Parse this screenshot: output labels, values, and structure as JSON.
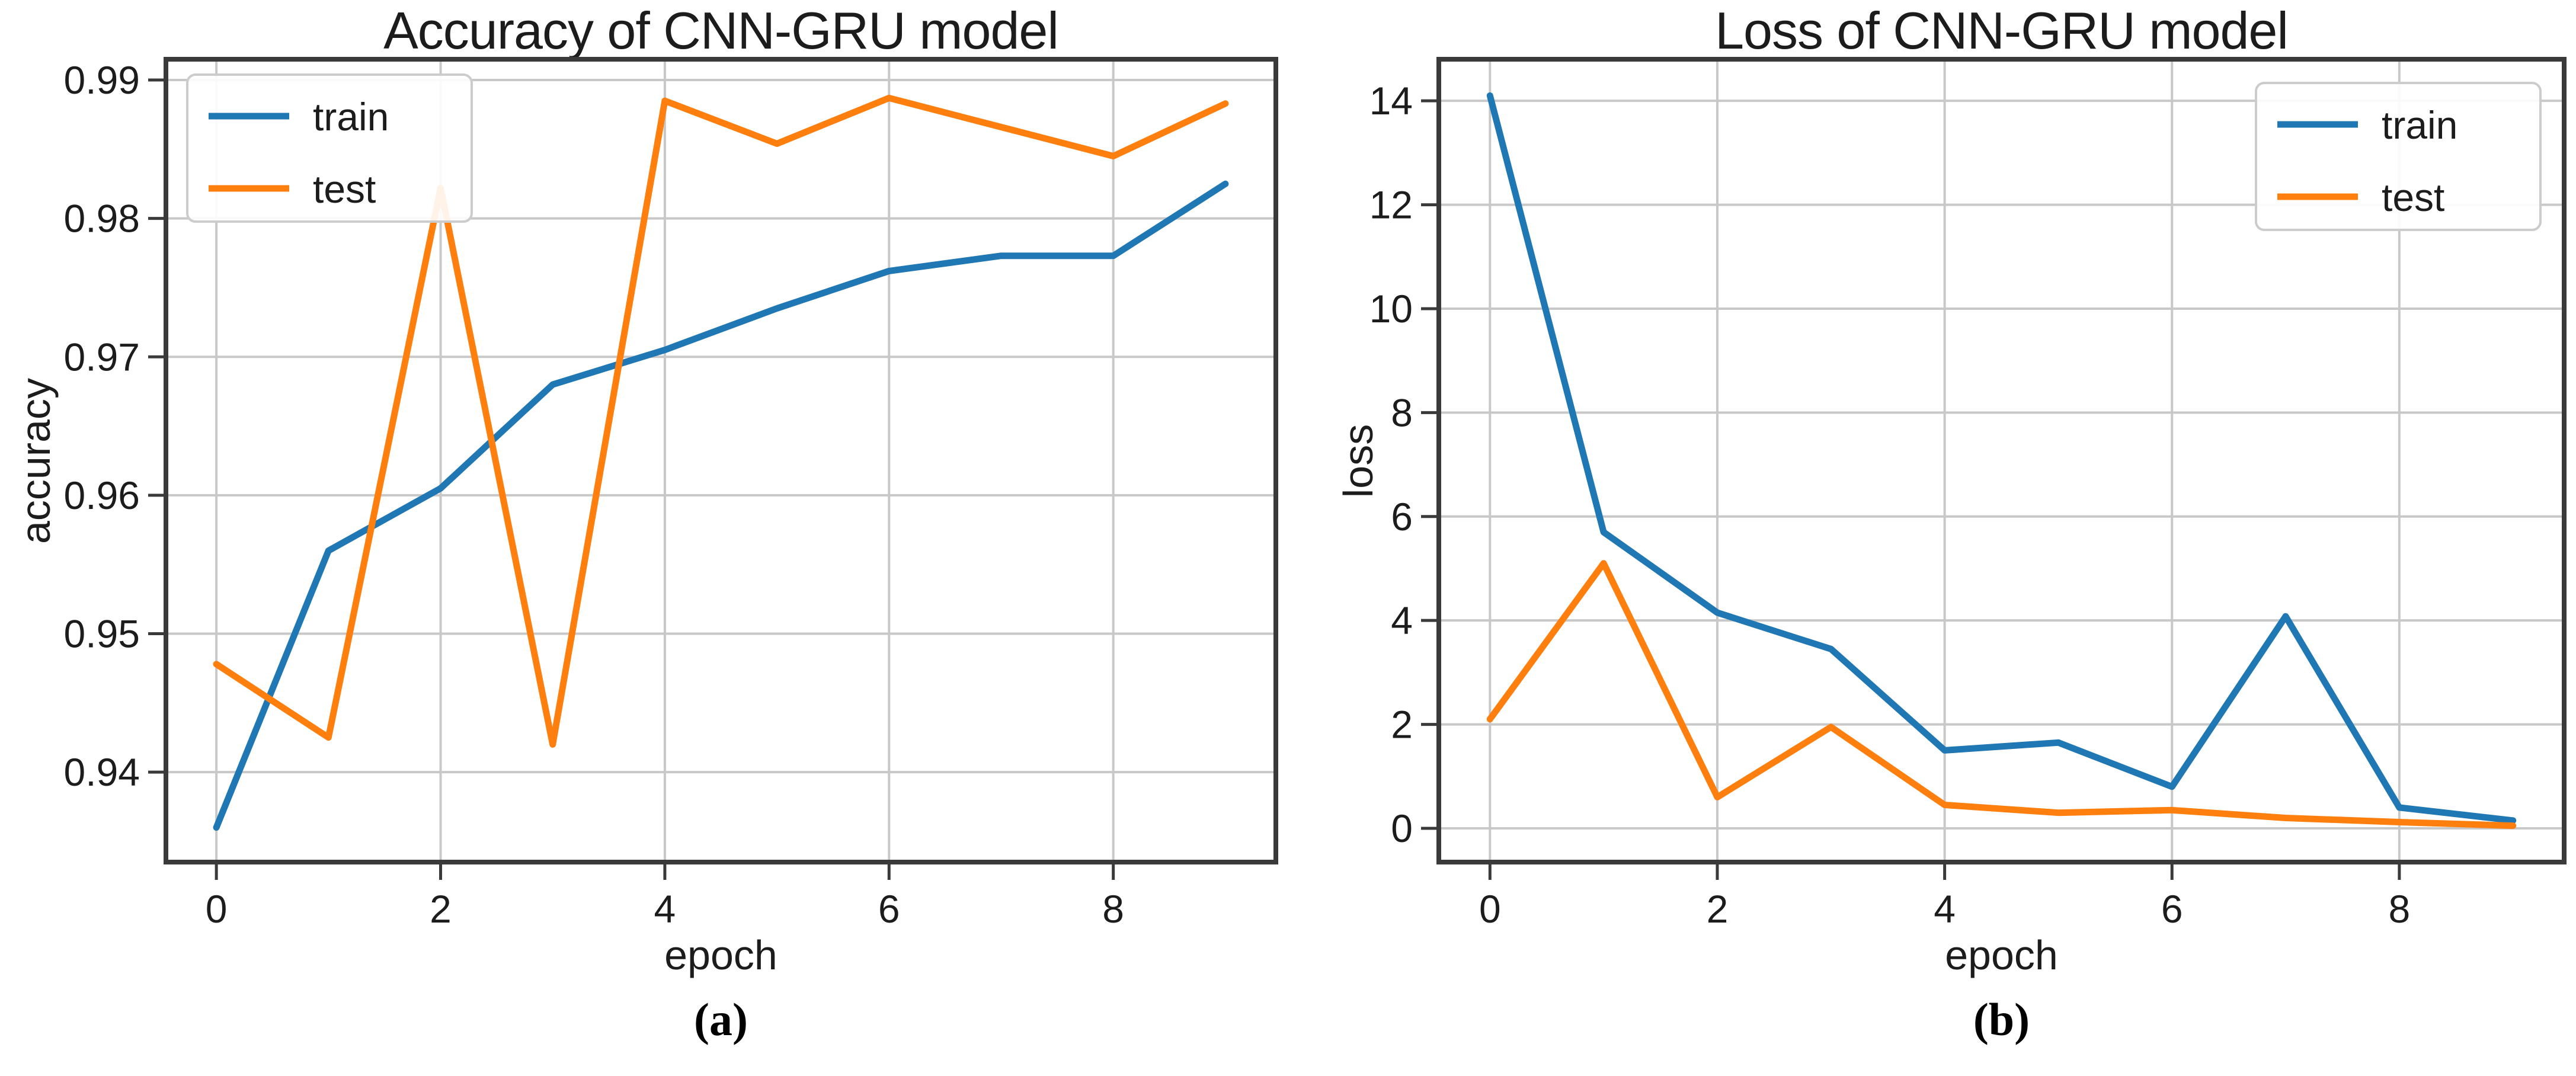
{
  "figure": {
    "background": "#ffffff",
    "text_color": "#1c1c1c",
    "grid_color": "#c8c8c8",
    "frame_color": "#3a3a3a",
    "accent_train": "#1f77b4",
    "accent_test": "#ff7f0e"
  },
  "chart_data": [
    {
      "type": "line",
      "title": "Accuracy of CNN-GRU model",
      "xlabel": "epoch",
      "ylabel": "accuracy",
      "caption": "(a)",
      "grid": true,
      "legend_position": "upper-left",
      "x": [
        0,
        1,
        2,
        3,
        4,
        5,
        6,
        7,
        8,
        9
      ],
      "series": [
        {
          "name": "train",
          "color": "#1f77b4",
          "values": [
            0.936,
            0.956,
            0.9605,
            0.968,
            0.9705,
            0.9735,
            0.9762,
            0.9773,
            0.9773,
            0.9825
          ]
        },
        {
          "name": "test",
          "color": "#ff7f0e",
          "values": [
            0.9478,
            0.9425,
            0.9822,
            0.942,
            0.9885,
            0.9854,
            0.9887,
            0.9866,
            0.9845,
            0.9883
          ]
        }
      ],
      "xlim": [
        -0.45,
        9.45
      ],
      "ylim": [
        0.9335,
        0.9915
      ],
      "xticks": [
        0,
        2,
        4,
        6,
        8
      ],
      "xtick_labels": [
        "0",
        "2",
        "4",
        "6",
        "8"
      ],
      "yticks": [
        0.94,
        0.95,
        0.96,
        0.97,
        0.98,
        0.99
      ],
      "ytick_labels": [
        "0.94",
        "0.95",
        "0.96",
        "0.97",
        "0.98",
        "0.99"
      ]
    },
    {
      "type": "line",
      "title": "Loss of CNN-GRU model",
      "xlabel": "epoch",
      "ylabel": "loss",
      "caption": "(b)",
      "grid": true,
      "legend_position": "upper-right",
      "x": [
        0,
        1,
        2,
        3,
        4,
        5,
        6,
        7,
        8,
        9
      ],
      "series": [
        {
          "name": "train",
          "color": "#1f77b4",
          "values": [
            14.1,
            5.7,
            4.15,
            3.45,
            1.5,
            1.65,
            0.8,
            4.08,
            0.4,
            0.15
          ]
        },
        {
          "name": "test",
          "color": "#ff7f0e",
          "values": [
            2.1,
            5.1,
            0.6,
            1.95,
            0.45,
            0.3,
            0.35,
            0.2,
            0.12,
            0.05
          ]
        }
      ],
      "xlim": [
        -0.45,
        9.45
      ],
      "ylim": [
        -0.65,
        14.8
      ],
      "xticks": [
        0,
        2,
        4,
        6,
        8
      ],
      "xtick_labels": [
        "0",
        "2",
        "4",
        "6",
        "8"
      ],
      "yticks": [
        0,
        2,
        4,
        6,
        8,
        10,
        12,
        14
      ],
      "ytick_labels": [
        "0",
        "2",
        "4",
        "6",
        "8",
        "10",
        "12",
        "14"
      ]
    }
  ]
}
